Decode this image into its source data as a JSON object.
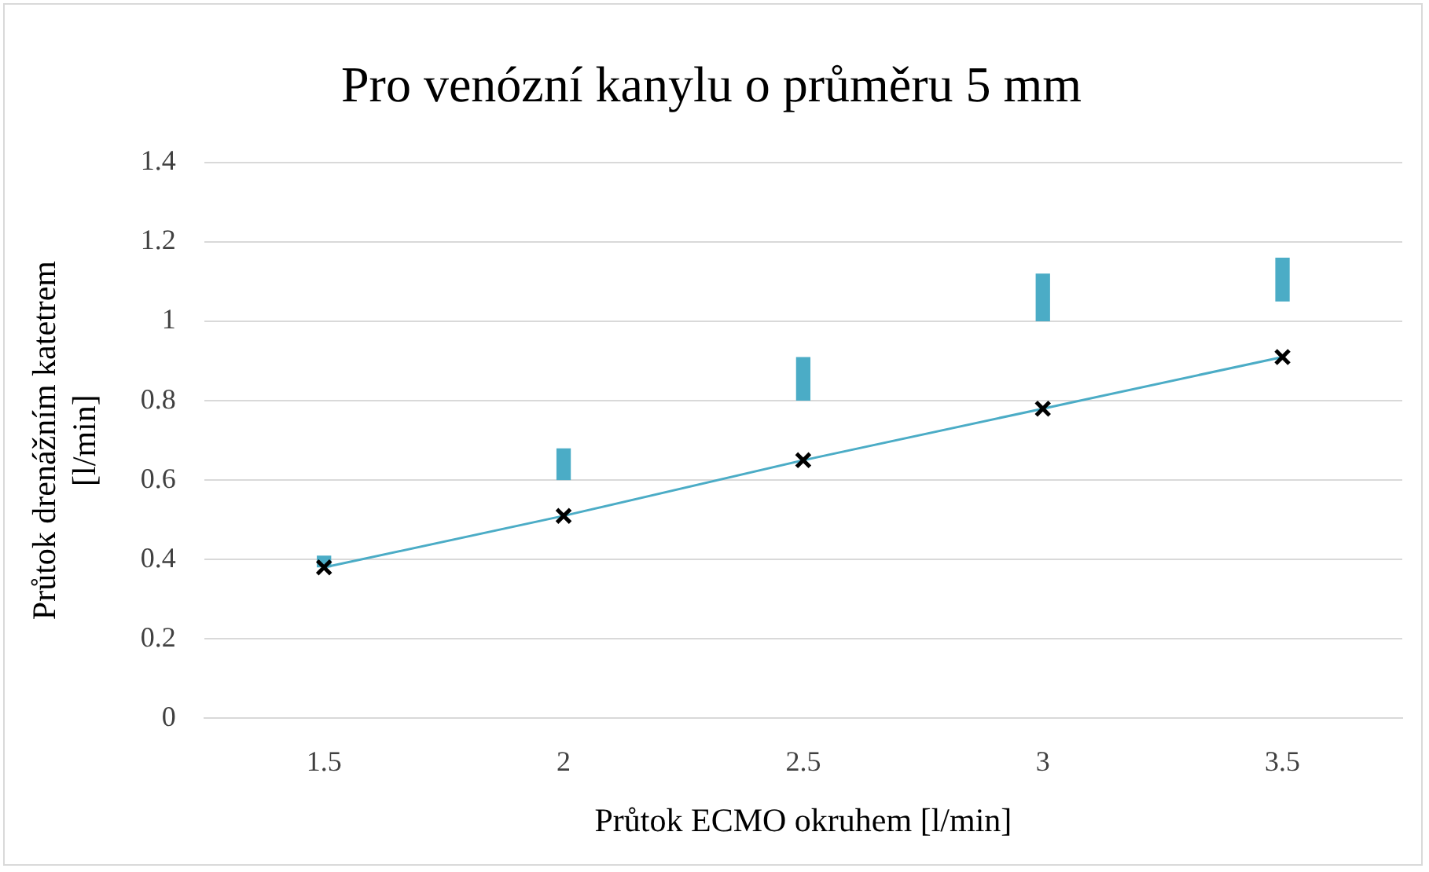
{
  "chart_data": {
    "type": "line",
    "title": "Pro venózní kanylu o průměru 5 mm",
    "xlabel": "Průtok ECMO okruhem [l/min]",
    "ylabel": "Průtok drenážním katetrem [l/min]",
    "categories": [
      "1.5",
      "2",
      "2.5",
      "3",
      "3.5"
    ],
    "series": [
      {
        "type": "bar",
        "color": "#4bacc6",
        "base": [
          0.38,
          0.6,
          0.8,
          1.0,
          1.05
        ],
        "values": [
          0.03,
          0.08,
          0.11,
          0.12,
          0.11
        ]
      },
      {
        "color": "#4bacc6",
        "marker": "cross",
        "values": [
          0.38,
          0.51,
          0.65,
          0.78,
          0.91
        ]
      }
    ],
    "ylim": [
      0,
      1.4
    ],
    "yticks": [
      0,
      0.2,
      0.4,
      0.6,
      0.8,
      1,
      1.2,
      1.4
    ],
    "grid": "y",
    "legend": false
  }
}
